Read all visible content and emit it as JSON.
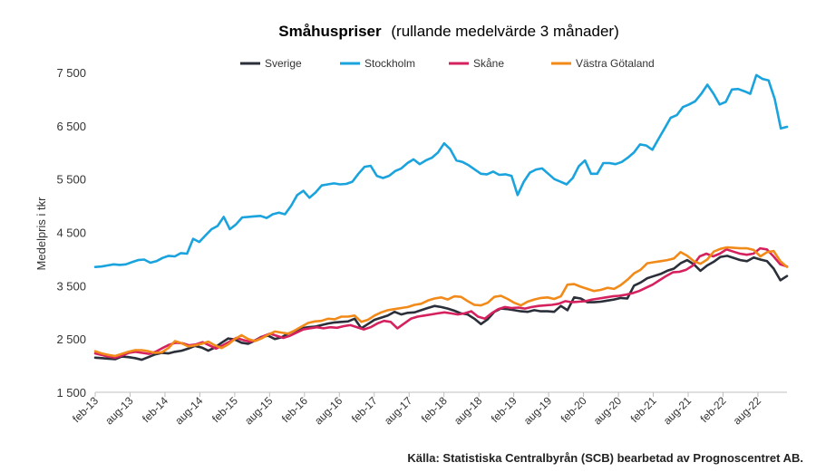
{
  "chart_data": {
    "type": "line",
    "title": "Småhuspriser",
    "subtitle": "(rullande medelvärde 3 månader)",
    "ylabel": "Medelpris i tkr",
    "xlabel": "",
    "ylim": [
      1500,
      7500
    ],
    "yticks": [
      1500,
      2500,
      3500,
      4500,
      5500,
      6500,
      7500
    ],
    "ytick_labels": [
      "1 500",
      "2 500",
      "3 500",
      "4 500",
      "5 500",
      "6 500",
      "7 500"
    ],
    "xtick_labels": [
      "feb-13",
      "aug-13",
      "feb-14",
      "aug-14",
      "feb-15",
      "aug-15",
      "feb-16",
      "aug-16",
      "feb-17",
      "aug-17",
      "feb-18",
      "aug-18",
      "feb-19",
      "aug-19",
      "feb-20",
      "aug-20",
      "feb-21",
      "aug-21",
      "feb-22",
      "aug-22"
    ],
    "x_start": "feb-13",
    "x_end": "jan-23",
    "grid": false,
    "legend": "top",
    "series": [
      {
        "name": "Sverige",
        "color": "#2b2f3a",
        "values": [
          2150,
          2140,
          2130,
          2120,
          2170,
          2160,
          2140,
          2110,
          2160,
          2210,
          2240,
          2230,
          2260,
          2280,
          2320,
          2370,
          2340,
          2280,
          2340,
          2430,
          2510,
          2490,
          2430,
          2410,
          2470,
          2540,
          2560,
          2500,
          2530,
          2600,
          2650,
          2700,
          2720,
          2730,
          2760,
          2790,
          2810,
          2820,
          2830,
          2880,
          2700,
          2780,
          2860,
          2900,
          2940,
          3010,
          2960,
          2990,
          3000,
          3040,
          3080,
          3120,
          3100,
          3070,
          3030,
          2980,
          2960,
          2880,
          2780,
          2870,
          3010,
          3070,
          3060,
          3040,
          3020,
          3010,
          3040,
          3020,
          3020,
          3010,
          3120,
          3040,
          3280,
          3260,
          3190,
          3190,
          3200,
          3220,
          3240,
          3270,
          3260,
          3500,
          3560,
          3640,
          3680,
          3720,
          3780,
          3820,
          3920,
          3980,
          3900,
          3780,
          3880,
          3950,
          4040,
          4060,
          4020,
          3980,
          3960,
          4030,
          3990,
          3960,
          3820,
          3600,
          3680
        ]
      },
      {
        "name": "Stockholm",
        "color": "#1aa3dd",
        "values": [
          3850,
          3860,
          3880,
          3900,
          3890,
          3900,
          3940,
          3980,
          3990,
          3930,
          3960,
          4020,
          4060,
          4050,
          4110,
          4100,
          4380,
          4320,
          4440,
          4560,
          4620,
          4790,
          4560,
          4650,
          4780,
          4790,
          4800,
          4810,
          4770,
          4840,
          4870,
          4840,
          5000,
          5200,
          5280,
          5150,
          5250,
          5380,
          5400,
          5420,
          5400,
          5410,
          5450,
          5600,
          5730,
          5750,
          5560,
          5520,
          5560,
          5650,
          5700,
          5800,
          5870,
          5780,
          5850,
          5900,
          6000,
          6170,
          6060,
          5850,
          5820,
          5760,
          5680,
          5600,
          5590,
          5640,
          5580,
          5590,
          5560,
          5200,
          5450,
          5620,
          5680,
          5700,
          5600,
          5500,
          5450,
          5400,
          5520,
          5740,
          5850,
          5600,
          5600,
          5800,
          5800,
          5780,
          5820,
          5900,
          6000,
          6150,
          6130,
          6050,
          6250,
          6450,
          6650,
          6700,
          6850,
          6900,
          6960,
          7100,
          7270,
          7100,
          6900,
          6950,
          7180,
          7190,
          7150,
          7100,
          7450,
          7380,
          7350,
          7000,
          6450,
          6480
        ]
      },
      {
        "name": "Skåne",
        "color": "#d6215f",
        "values": [
          2230,
          2200,
          2170,
          2150,
          2190,
          2240,
          2260,
          2240,
          2220,
          2260,
          2330,
          2390,
          2430,
          2420,
          2380,
          2400,
          2440,
          2380,
          2320,
          2380,
          2450,
          2520,
          2480,
          2450,
          2480,
          2550,
          2600,
          2560,
          2520,
          2560,
          2620,
          2680,
          2700,
          2720,
          2700,
          2720,
          2710,
          2740,
          2760,
          2720,
          2680,
          2720,
          2790,
          2840,
          2820,
          2700,
          2790,
          2880,
          2920,
          2940,
          2960,
          2980,
          3000,
          2980,
          2960,
          2980,
          3020,
          2920,
          2880,
          2980,
          3060,
          3100,
          3080,
          3090,
          3070,
          3100,
          3120,
          3130,
          3140,
          3160,
          3210,
          3190,
          3200,
          3210,
          3240,
          3260,
          3280,
          3300,
          3310,
          3330,
          3360,
          3400,
          3460,
          3520,
          3600,
          3680,
          3750,
          3760,
          3800,
          3880,
          4050,
          4100,
          4050,
          4100,
          4180,
          4140,
          4100,
          4080,
          4100,
          4200,
          4180,
          4050,
          3900,
          3860
        ]
      },
      {
        "name": "Västra Götaland",
        "color": "#f28a1a",
        "values": [
          2270,
          2230,
          2200,
          2180,
          2220,
          2260,
          2290,
          2290,
          2270,
          2240,
          2250,
          2330,
          2460,
          2420,
          2360,
          2380,
          2410,
          2450,
          2380,
          2330,
          2400,
          2500,
          2570,
          2500,
          2460,
          2510,
          2580,
          2640,
          2620,
          2600,
          2660,
          2730,
          2800,
          2830,
          2840,
          2880,
          2870,
          2920,
          2920,
          2940,
          2820,
          2860,
          2940,
          3000,
          3040,
          3060,
          3080,
          3100,
          3140,
          3160,
          3220,
          3260,
          3280,
          3240,
          3300,
          3290,
          3210,
          3140,
          3130,
          3180,
          3290,
          3310,
          3250,
          3180,
          3130,
          3200,
          3240,
          3270,
          3280,
          3250,
          3300,
          3520,
          3530,
          3480,
          3440,
          3400,
          3420,
          3460,
          3440,
          3510,
          3610,
          3730,
          3800,
          3920,
          3940,
          3960,
          3980,
          4010,
          4130,
          4060,
          3960,
          3910,
          3990,
          4140,
          4190,
          4220,
          4210,
          4200,
          4200,
          4170,
          4050,
          4130,
          4150,
          3960,
          3850
        ]
      }
    ],
    "source": "Källa: Statistiska Centralbyrån (SCB) bearbetad av Prognoscentret AB."
  }
}
